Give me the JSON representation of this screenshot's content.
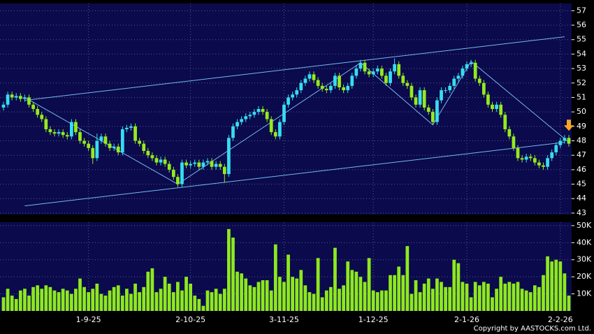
{
  "chart_data": {
    "type": "candlestick",
    "categories": [
      null,
      null,
      null,
      null,
      null,
      null,
      null,
      null,
      null,
      null,
      null,
      null,
      null,
      null,
      null,
      null,
      null,
      null,
      null,
      null,
      "1-9-25",
      null,
      null,
      null,
      null,
      null,
      null,
      null,
      null,
      null,
      null,
      null,
      null,
      null,
      null,
      null,
      null,
      null,
      null,
      null,
      null,
      null,
      null,
      null,
      "2-10-25",
      null,
      null,
      null,
      null,
      null,
      null,
      null,
      null,
      null,
      null,
      null,
      null,
      null,
      null,
      null,
      null,
      null,
      null,
      null,
      null,
      null,
      "3-11-25",
      null,
      null,
      null,
      null,
      null,
      null,
      null,
      null,
      null,
      null,
      null,
      null,
      null,
      null,
      null,
      null,
      null,
      null,
      null,
      null,
      "1-12-25",
      null,
      null,
      null,
      null,
      null,
      null,
      null,
      null,
      null,
      null,
      null,
      null,
      null,
      null,
      null,
      null,
      null,
      null,
      null,
      null,
      null,
      "2-1-26",
      null,
      null,
      null,
      null,
      null,
      null,
      null,
      null,
      null,
      null,
      null,
      null,
      null,
      null,
      null,
      null,
      null,
      null,
      null,
      null,
      null,
      "2-2-26",
      null,
      null
    ],
    "open": [
      50.3,
      50.5,
      51.2,
      51.0,
      51.1,
      50.9,
      51.0,
      50.5,
      50.2,
      49.8,
      49.5,
      48.8,
      48.6,
      48.5,
      48.6,
      48.4,
      48.3,
      49.3,
      48.6,
      48.0,
      47.8,
      47.5,
      46.8,
      48.0,
      48.3,
      47.8,
      47.5,
      47.6,
      47.2,
      48.8,
      48.9,
      49.0,
      48.0,
      47.8,
      47.3,
      47.0,
      46.8,
      46.5,
      46.7,
      46.4,
      46.0,
      45.5,
      45.0,
      46.5,
      46.3,
      46.4,
      46.5,
      46.2,
      46.5,
      46.6,
      46.2,
      46.4,
      46.2,
      45.7,
      48.2,
      49.0,
      49.3,
      49.5,
      49.7,
      49.8,
      50.0,
      50.2,
      50.0,
      49.5,
      48.6,
      48.3,
      49.3,
      50.5,
      51.0,
      51.2,
      51.5,
      52.0,
      52.3,
      52.6,
      52.2,
      51.8,
      51.6,
      51.5,
      51.8,
      52.5,
      51.7,
      51.5,
      51.8,
      52.5,
      53.0,
      53.4,
      52.8,
      52.6,
      52.8,
      53.0,
      52.5,
      52.0,
      52.8,
      53.3,
      52.5,
      52.0,
      51.8,
      51.0,
      50.5,
      51.5,
      50.3,
      50.0,
      49.3,
      50.8,
      51.5,
      51.5,
      51.8,
      52.3,
      52.5,
      53.0,
      53.3,
      53.4,
      52.3,
      52.0,
      51.2,
      50.5,
      50.2,
      50.5,
      49.8,
      48.8,
      48.3,
      47.5,
      46.8,
      46.7,
      46.9,
      46.8,
      46.5,
      46.3,
      46.2,
      46.8,
      47.2,
      47.7,
      48.0,
      48.2
    ],
    "high": [
      50.7,
      51.4,
      51.4,
      51.3,
      51.3,
      51.2,
      51.2,
      50.7,
      50.4,
      50.0,
      49.7,
      49.0,
      48.8,
      48.8,
      48.8,
      48.6,
      49.5,
      49.5,
      48.8,
      48.2,
      48.0,
      47.7,
      48.5,
      48.5,
      48.5,
      48.0,
      47.8,
      47.8,
      49.0,
      49.1,
      49.2,
      49.2,
      48.2,
      48.0,
      47.5,
      47.2,
      47.0,
      46.9,
      46.9,
      46.6,
      46.2,
      45.7,
      46.7,
      46.7,
      46.6,
      46.7,
      46.7,
      46.7,
      46.8,
      46.8,
      46.6,
      46.6,
      46.4,
      48.4,
      49.2,
      49.5,
      49.7,
      49.9,
      50.0,
      50.2,
      50.4,
      50.4,
      50.2,
      49.7,
      48.8,
      49.5,
      50.7,
      51.2,
      51.4,
      51.7,
      52.2,
      52.5,
      52.8,
      52.8,
      52.4,
      52.0,
      51.8,
      52.0,
      52.7,
      52.7,
      51.9,
      52.0,
      52.7,
      53.2,
      53.6,
      53.6,
      53.0,
      53.0,
      53.2,
      53.2,
      52.7,
      53.0,
      53.7,
      53.5,
      52.7,
      52.2,
      52.0,
      51.2,
      51.7,
      51.7,
      50.5,
      50.2,
      51.0,
      51.7,
      51.7,
      52.0,
      52.5,
      52.7,
      53.2,
      53.5,
      53.6,
      53.6,
      52.5,
      52.2,
      51.4,
      50.7,
      50.7,
      50.7,
      50.0,
      49.0,
      48.5,
      47.7,
      47.0,
      47.1,
      47.1,
      47.0,
      46.7,
      46.5,
      47.0,
      47.4,
      47.9,
      48.2,
      48.4,
      48.4
    ],
    "low": [
      50.1,
      50.3,
      50.8,
      50.8,
      50.7,
      50.7,
      50.3,
      50.0,
      49.6,
      49.3,
      48.6,
      48.4,
      48.3,
      48.3,
      48.2,
      48.1,
      48.1,
      48.4,
      47.8,
      47.6,
      47.3,
      46.4,
      46.6,
      47.8,
      47.6,
      47.3,
      47.3,
      47.0,
      47.0,
      48.6,
      48.7,
      47.8,
      47.6,
      47.1,
      46.8,
      46.6,
      46.3,
      46.3,
      46.2,
      45.8,
      45.3,
      44.8,
      44.8,
      46.1,
      46.1,
      46.2,
      46.0,
      46.0,
      46.3,
      46.0,
      46.0,
      46.0,
      45.1,
      45.5,
      48.0,
      48.8,
      49.1,
      49.3,
      49.5,
      49.6,
      49.8,
      49.8,
      49.3,
      48.4,
      48.1,
      48.1,
      49.1,
      50.3,
      50.8,
      51.0,
      51.3,
      51.8,
      52.1,
      52.0,
      51.6,
      51.4,
      51.3,
      51.3,
      51.6,
      51.5,
      51.3,
      51.3,
      51.6,
      52.3,
      52.8,
      52.6,
      52.4,
      52.4,
      52.6,
      52.3,
      51.8,
      51.8,
      52.6,
      52.3,
      51.8,
      51.6,
      50.8,
      50.3,
      50.3,
      50.1,
      49.8,
      49.1,
      49.1,
      50.6,
      51.3,
      51.3,
      51.6,
      52.1,
      52.3,
      52.8,
      53.1,
      52.1,
      51.8,
      51.0,
      50.3,
      50.0,
      50.0,
      49.6,
      48.6,
      48.1,
      47.3,
      46.6,
      46.5,
      46.5,
      46.6,
      46.3,
      46.1,
      46.0,
      46.0,
      46.6,
      47.0,
      47.5,
      47.8,
      47.6
    ],
    "close": [
      50.5,
      51.2,
      51.0,
      51.1,
      50.9,
      51.0,
      50.5,
      50.2,
      49.8,
      49.5,
      48.8,
      48.6,
      48.5,
      48.6,
      48.4,
      48.3,
      49.3,
      48.6,
      48.0,
      47.8,
      47.5,
      46.8,
      48.0,
      48.3,
      47.8,
      47.5,
      47.6,
      47.2,
      48.8,
      48.9,
      49.0,
      48.0,
      47.8,
      47.3,
      47.0,
      46.8,
      46.5,
      46.7,
      46.4,
      46.0,
      45.5,
      45.0,
      46.5,
      46.3,
      46.4,
      46.5,
      46.2,
      46.5,
      46.6,
      46.2,
      46.4,
      46.2,
      45.7,
      48.2,
      49.0,
      49.3,
      49.5,
      49.7,
      49.8,
      50.0,
      50.2,
      50.0,
      49.5,
      48.6,
      48.3,
      49.3,
      50.5,
      51.0,
      51.2,
      51.5,
      52.0,
      52.3,
      52.6,
      52.2,
      51.8,
      51.6,
      51.5,
      51.8,
      52.5,
      51.7,
      51.5,
      51.8,
      52.5,
      53.0,
      53.4,
      52.8,
      52.6,
      52.8,
      53.0,
      52.5,
      52.0,
      52.8,
      53.3,
      52.5,
      52.0,
      51.8,
      51.0,
      50.5,
      51.5,
      50.3,
      50.0,
      49.3,
      50.8,
      51.5,
      51.5,
      51.8,
      52.3,
      52.5,
      53.0,
      53.3,
      53.4,
      52.3,
      52.0,
      51.2,
      50.5,
      50.2,
      50.5,
      49.8,
      48.8,
      48.3,
      47.5,
      46.8,
      46.7,
      46.9,
      46.8,
      46.5,
      46.3,
      46.2,
      46.8,
      47.2,
      47.7,
      48.0,
      48.2,
      47.8
    ],
    "up_color": "#38dcf0",
    "down_color": "#96ea1e",
    "ylim": [
      42.9,
      57.5
    ],
    "yticks": [
      43,
      44,
      45,
      46,
      47,
      48,
      49,
      50,
      51,
      52,
      53,
      54,
      55,
      56,
      57
    ],
    "trend_lines": [
      {
        "color": "#7ab8f0",
        "points": [
          [
            5,
            50.8
          ],
          [
            132,
            55.2
          ]
        ]
      },
      {
        "color": "#7ab8f0",
        "points": [
          [
            5,
            43.5
          ],
          [
            132,
            47.9
          ]
        ]
      },
      {
        "color": "#7ab8f0",
        "points": [
          [
            5,
            51.0
          ],
          [
            41,
            45.0
          ],
          [
            84,
            53.4
          ],
          [
            101,
            49.1
          ],
          [
            110,
            53.5
          ],
          [
            133,
            47.9
          ]
        ]
      }
    ],
    "volume": {
      "color": "#8ee81e",
      "ylim": [
        0,
        52000
      ],
      "yticks": [
        {
          "value": 10000,
          "label": "10K"
        },
        {
          "value": 20000,
          "label": "20K"
        },
        {
          "value": 30000,
          "label": "30K"
        },
        {
          "value": 40000,
          "label": "40K"
        },
        {
          "value": 50000,
          "label": "50K"
        }
      ],
      "values": [
        8000,
        13000,
        9000,
        7000,
        12000,
        13000,
        9000,
        14000,
        15000,
        13000,
        15000,
        14000,
        12000,
        11000,
        13000,
        12000,
        10000,
        13000,
        19000,
        14000,
        11000,
        13000,
        16000,
        10000,
        9000,
        12000,
        14000,
        15000,
        9000,
        13000,
        10000,
        16000,
        11000,
        14000,
        23000,
        25000,
        11000,
        13000,
        20000,
        16000,
        11000,
        17000,
        12000,
        20000,
        16000,
        9000,
        7000,
        3000,
        12000,
        11000,
        13000,
        10000,
        13000,
        48000,
        43000,
        23000,
        22000,
        19000,
        15000,
        14000,
        17000,
        18000,
        18000,
        12000,
        39000,
        20000,
        17000,
        33000,
        20000,
        19000,
        24000,
        15000,
        11000,
        10000,
        31000,
        8000,
        12000,
        14000,
        37000,
        13000,
        15000,
        29000,
        24000,
        23000,
        20000,
        17000,
        31000,
        12000,
        11000,
        12000,
        12000,
        21000,
        21000,
        26000,
        21000,
        38000,
        10000,
        18000,
        11000,
        16000,
        19000,
        13000,
        19000,
        17000,
        14000,
        14000,
        30000,
        28000,
        17000,
        16000,
        8000,
        17000,
        15000,
        17000,
        16000,
        8000,
        13000,
        20000,
        16000,
        17000,
        16000,
        17000,
        13000,
        12000,
        11000,
        15000,
        14000,
        21000,
        32000,
        29000,
        30000,
        29000,
        22000,
        9000
      ]
    },
    "grid": true,
    "footer": "Copyright by AASTOCKS.com Ltd."
  }
}
